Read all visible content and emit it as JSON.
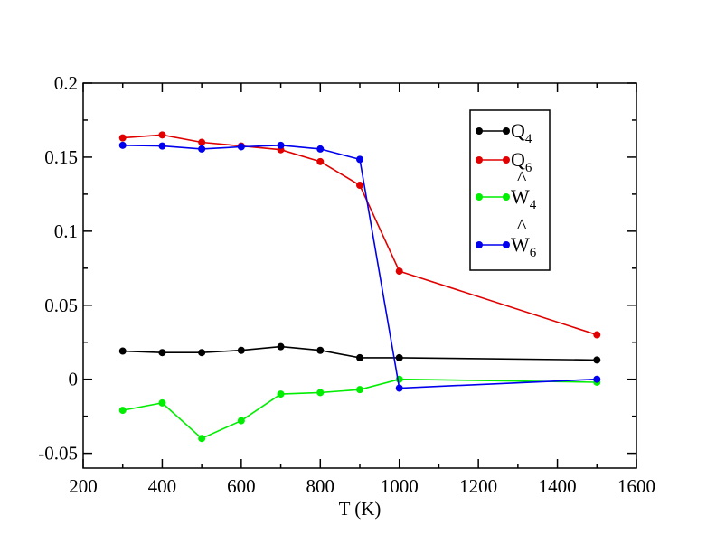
{
  "chart_data": {
    "type": "line",
    "title": "",
    "xlabel": "T (K)",
    "ylabel": "",
    "xlim": [
      200,
      1600
    ],
    "ylim": [
      -0.06,
      0.2
    ],
    "x_ticks": [
      200,
      400,
      600,
      800,
      1000,
      1200,
      1400,
      1600
    ],
    "x_tick_labels": [
      "200",
      "400",
      "600",
      "800",
      "1000",
      "1200",
      "1400",
      "1600"
    ],
    "y_ticks": [
      -0.05,
      0,
      0.05,
      0.1,
      0.15,
      0.2
    ],
    "y_tick_labels": [
      "-0.05",
      "0",
      "0.05",
      "0.1",
      "0.15",
      "0.2"
    ],
    "grid": false,
    "legend_position": "top-right",
    "x": [
      300,
      400,
      500,
      600,
      700,
      800,
      900,
      1000,
      1500
    ],
    "series": [
      {
        "name": "Q4",
        "label_main": "Q",
        "label_sub": "4",
        "hat": false,
        "color": "#000000",
        "values": [
          0.019,
          0.018,
          0.018,
          0.0195,
          0.022,
          0.0195,
          0.0145,
          0.0145,
          0.013
        ]
      },
      {
        "name": "Q6",
        "label_main": "Q",
        "label_sub": "6",
        "hat": false,
        "color": "#e00000",
        "values": [
          0.163,
          0.165,
          0.16,
          0.1575,
          0.155,
          0.147,
          0.131,
          0.073,
          0.03
        ]
      },
      {
        "name": "Ŵ4",
        "label_main": "W",
        "label_sub": "4",
        "hat": true,
        "color": "#00ee00",
        "values": [
          -0.021,
          -0.016,
          -0.04,
          -0.028,
          -0.01,
          -0.009,
          -0.007,
          0.0,
          -0.002
        ]
      },
      {
        "name": "Ŵ6",
        "label_main": "W",
        "label_sub": "6",
        "hat": true,
        "color": "#0000ee",
        "values": [
          0.158,
          0.1575,
          0.1555,
          0.157,
          0.158,
          0.1555,
          0.1485,
          -0.006,
          0.0
        ]
      }
    ]
  }
}
